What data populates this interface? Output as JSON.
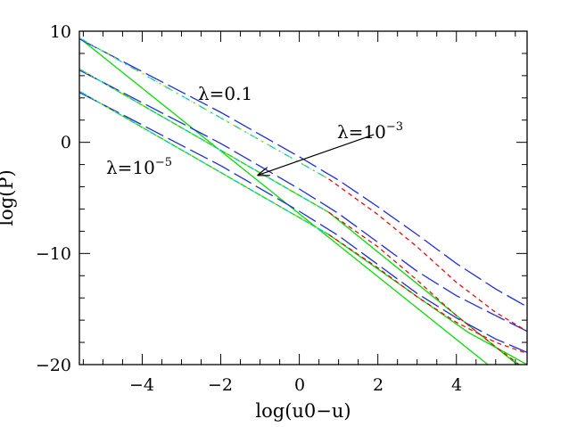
{
  "chart_data": {
    "type": "line",
    "xlabel": "log(u0−u)",
    "ylabel": "log(P)",
    "xlim": [
      -5.6,
      5.8
    ],
    "ylim": [
      -20,
      10
    ],
    "grid": false,
    "x_ticks": [
      -4,
      -2,
      0,
      2,
      4
    ],
    "x_tick_labels": [
      "−4",
      "−2",
      "0",
      "2",
      "4"
    ],
    "y_ticks": [
      -20,
      -10,
      0,
      10
    ],
    "y_tick_labels": [
      "−20",
      "−10",
      "0",
      "10"
    ],
    "colors": {
      "green": "#00dd00",
      "blue": "#1f2ed6",
      "red": "#e01010",
      "cyan": "#00c8d0",
      "yellow": "#e6d600"
    },
    "annotations": [
      {
        "text": "λ=0.1",
        "base": "λ=0.1",
        "exp": ""
      },
      {
        "text": "λ=10⁻³",
        "base": "λ=10",
        "exp": "−3"
      },
      {
        "text": "λ=10⁻⁵",
        "base": "λ=10",
        "exp": "−5"
      }
    ],
    "series": [
      {
        "color": "green",
        "style": "solid",
        "x": [
          -5.6,
          4.8
        ],
        "y": [
          9.4,
          -20
        ]
      },
      {
        "color": "green",
        "style": "solid",
        "x": [
          -5.6,
          0.75,
          5.55
        ],
        "y": [
          6.6,
          -6.3,
          -20
        ]
      },
      {
        "color": "green",
        "style": "solid",
        "x": [
          -5.6,
          0.75,
          4.3,
          5.8
        ],
        "y": [
          4.6,
          -8.3,
          -17.1,
          -20
        ]
      },
      {
        "color": "blue",
        "style": "longdash",
        "x": [
          -5.6,
          -2.0,
          0.0,
          1.0,
          2.0,
          3.0,
          4.0,
          5.0,
          5.8
        ],
        "y": [
          9.3,
          2.7,
          -1.3,
          -3.4,
          -5.8,
          -8.3,
          -10.9,
          -13.2,
          -14.8
        ]
      },
      {
        "color": "blue",
        "style": "longdash",
        "x": [
          -5.6,
          -2.0,
          0.0,
          1.0,
          2.0,
          3.0,
          4.0,
          5.0,
          5.8
        ],
        "y": [
          6.5,
          -0.1,
          -4.2,
          -6.4,
          -9.0,
          -11.6,
          -13.8,
          -15.6,
          -17.0
        ]
      },
      {
        "color": "blue",
        "style": "longdash",
        "x": [
          -5.6,
          -2.0,
          0.0,
          1.0,
          2.0,
          3.0,
          4.0,
          5.0,
          5.8
        ],
        "y": [
          4.5,
          -2.1,
          -6.2,
          -8.4,
          -11.0,
          -13.6,
          -15.8,
          -17.7,
          -18.9
        ]
      },
      {
        "color": "red",
        "style": "shortdash",
        "x": [
          0.75,
          2.0,
          3.0,
          4.0,
          5.0,
          5.8
        ],
        "y": [
          -3.3,
          -6.5,
          -9.4,
          -12.6,
          -15.3,
          -17.0
        ]
      },
      {
        "color": "red",
        "style": "shortdash",
        "x": [
          0.75,
          2.0,
          3.0,
          4.0,
          5.0,
          5.6
        ],
        "y": [
          -6.3,
          -9.4,
          -12.4,
          -15.6,
          -18.4,
          -20.0
        ]
      },
      {
        "color": "red",
        "style": "shortdash",
        "x": [
          0.75,
          2.0,
          3.0,
          4.0,
          5.0,
          5.8
        ],
        "y": [
          -8.3,
          -11.3,
          -13.9,
          -16.2,
          -18.0,
          -19.0
        ]
      },
      {
        "color": "cyan",
        "style": "dashdot",
        "x": [
          -5.6,
          0.75
        ],
        "y": [
          9.4,
          -3.3
        ]
      },
      {
        "color": "cyan",
        "style": "dashdot",
        "x": [
          -5.6,
          0.75
        ],
        "y": [
          6.6,
          -6.3
        ]
      },
      {
        "color": "cyan",
        "style": "dashdot",
        "x": [
          -5.6,
          0.75
        ],
        "y": [
          4.6,
          -8.3
        ]
      },
      {
        "color": "yellow",
        "style": "dotted",
        "x": [
          -5.6,
          0.75
        ],
        "y": [
          9.4,
          -3.3
        ]
      },
      {
        "color": "yellow",
        "style": "dotted",
        "x": [
          -5.6,
          0.75
        ],
        "y": [
          6.6,
          -6.3
        ]
      },
      {
        "color": "yellow",
        "style": "dotted",
        "x": [
          -5.6,
          0.75
        ],
        "y": [
          4.6,
          -8.3
        ]
      }
    ],
    "arrow": {
      "label_index": 1,
      "from_data": [
        1.9,
        0.7
      ],
      "to_data": [
        -1.05,
        -2.95
      ]
    }
  }
}
